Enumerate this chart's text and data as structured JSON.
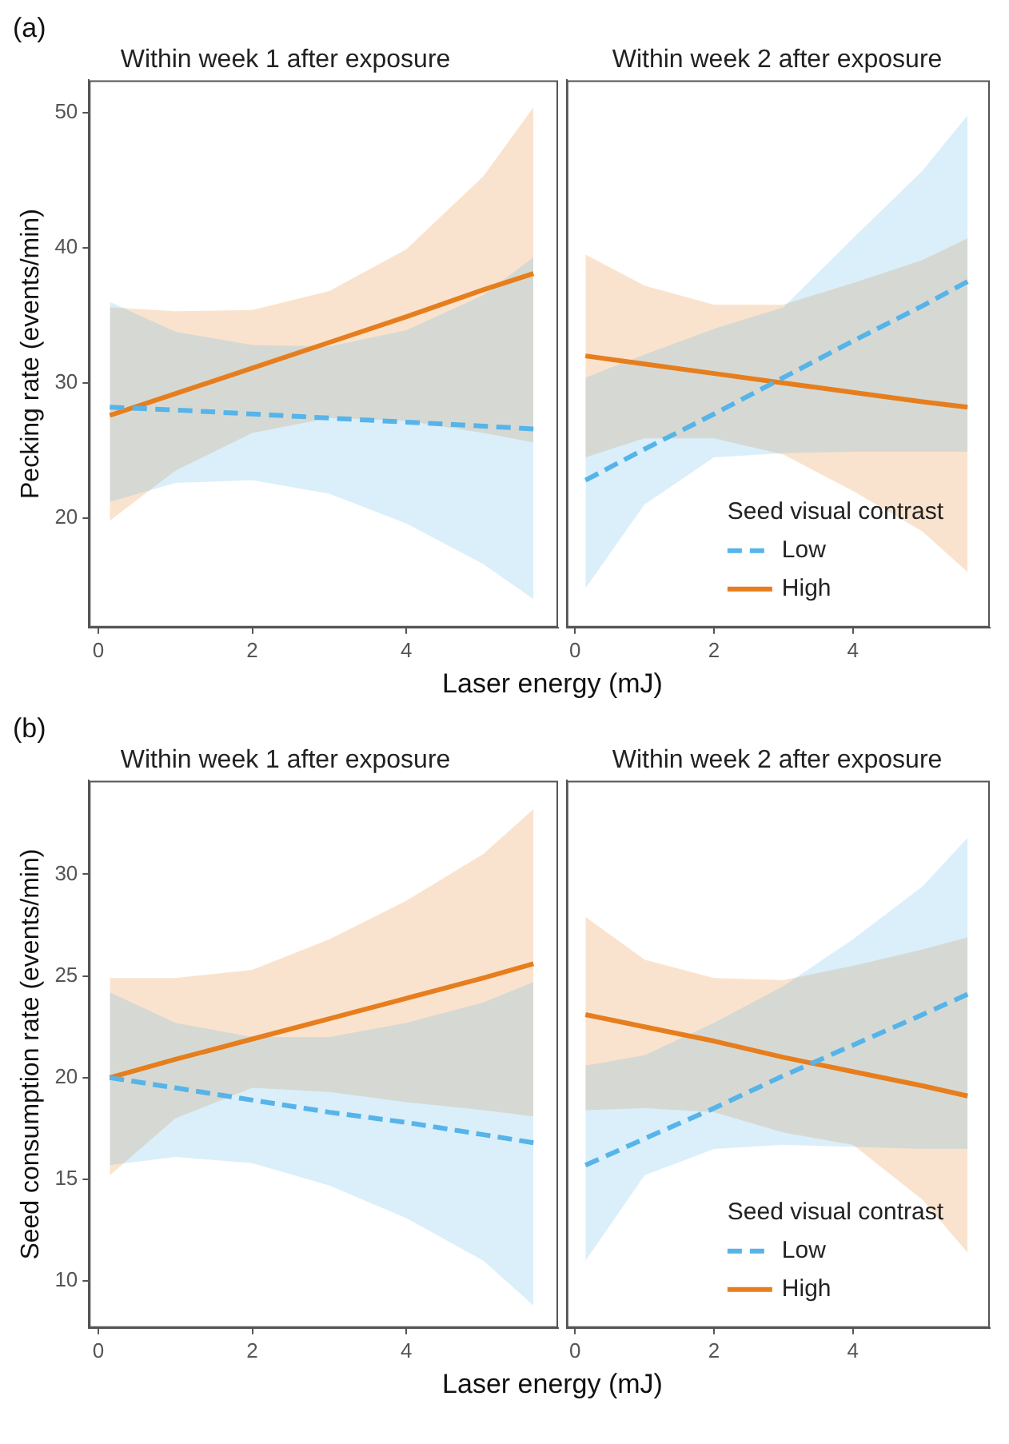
{
  "chart_data": [
    {
      "type": "line",
      "title": "Within week 1 after exposure",
      "ylabel": "Pecking rate (events/min)",
      "xlabel": "Laser energy (mJ)",
      "annotations": [
        "(a)"
      ],
      "x": [
        0.15,
        1,
        2,
        3,
        4,
        5,
        5.65
      ],
      "xlim": [
        -0.12,
        5.97
      ],
      "xticks": [
        0,
        2,
        4
      ],
      "ylim": [
        11.9,
        52.4
      ],
      "yticks": [
        20,
        30,
        40,
        50
      ],
      "marker": "none",
      "legend": false,
      "series": [
        {
          "color": "#56b4e9",
          "line_style": "dashed",
          "values": [
            28.2,
            28.0,
            27.7,
            27.4,
            27.1,
            26.8,
            26.6
          ],
          "lower": [
            21.2,
            22.6,
            22.8,
            21.8,
            19.6,
            16.6,
            14.0
          ],
          "upper": [
            36.0,
            33.8,
            32.8,
            32.7,
            33.9,
            36.5,
            39.3
          ]
        },
        {
          "color": "#e67e1e",
          "line_style": "solid",
          "values": [
            27.6,
            29.2,
            31.1,
            33.0,
            34.9,
            36.9,
            38.1
          ],
          "lower": [
            19.8,
            23.5,
            26.3,
            27.4,
            27.2,
            26.3,
            25.6
          ],
          "upper": [
            35.6,
            35.3,
            35.4,
            36.8,
            39.9,
            45.3,
            50.4
          ]
        }
      ]
    },
    {
      "type": "line",
      "title": "Within week 2 after exposure",
      "x": [
        0.15,
        1,
        2,
        3,
        4,
        5,
        5.65
      ],
      "xlim": [
        -0.12,
        5.97
      ],
      "xticks": [
        0,
        2,
        4
      ],
      "ylim": [
        11.9,
        52.4
      ],
      "yticks": [
        20,
        30,
        40,
        50
      ],
      "tick_labels": "x",
      "marker": "none",
      "legend": "bottom right",
      "legend_title": "Seed visual contrast",
      "series": [
        {
          "name": "Low",
          "color": "#56b4e9",
          "line_style": "dashed",
          "values": [
            22.8,
            25.1,
            27.7,
            30.4,
            33.1,
            35.7,
            37.5
          ],
          "lower": [
            14.8,
            21.0,
            24.5,
            24.8,
            24.9,
            24.9,
            24.9
          ],
          "upper": [
            30.4,
            32.1,
            34.0,
            35.6,
            40.7,
            45.7,
            49.8
          ]
        },
        {
          "name": "High",
          "color": "#e67e1e",
          "line_style": "solid",
          "values": [
            32.0,
            31.4,
            30.7,
            30.0,
            29.3,
            28.6,
            28.2
          ],
          "lower": [
            24.5,
            25.9,
            25.9,
            24.7,
            22.0,
            19.0,
            16.0
          ],
          "upper": [
            39.5,
            37.2,
            35.8,
            35.8,
            37.4,
            39.1,
            40.7
          ]
        }
      ]
    },
    {
      "type": "line",
      "title": "Within week 1 after exposure",
      "ylabel": "Seed consumption rate (events/min)",
      "xlabel": "Laser energy (mJ)",
      "annotations": [
        "(b)"
      ],
      "x": [
        0.15,
        1,
        2,
        3,
        4,
        5,
        5.65
      ],
      "xlim": [
        -0.12,
        5.97
      ],
      "xticks": [
        0,
        2,
        4
      ],
      "ylim": [
        7.7,
        34.6
      ],
      "yticks": [
        10,
        15,
        20,
        25,
        30
      ],
      "marker": "none",
      "legend": false,
      "series": [
        {
          "color": "#56b4e9",
          "line_style": "dashed",
          "values": [
            20.0,
            19.5,
            18.9,
            18.3,
            17.8,
            17.2,
            16.8
          ],
          "lower": [
            15.7,
            16.1,
            15.8,
            14.7,
            13.1,
            11.0,
            8.8
          ],
          "upper": [
            24.2,
            22.7,
            22.0,
            22.0,
            22.7,
            23.7,
            24.7
          ]
        },
        {
          "color": "#e67e1e",
          "line_style": "solid",
          "values": [
            20.0,
            20.9,
            21.9,
            22.9,
            23.9,
            24.9,
            25.6
          ],
          "lower": [
            15.2,
            18.0,
            19.5,
            19.3,
            18.8,
            18.4,
            18.1
          ],
          "upper": [
            24.9,
            24.9,
            25.3,
            26.8,
            28.7,
            31.0,
            33.2
          ]
        }
      ]
    },
    {
      "type": "line",
      "title": "Within week 2 after exposure",
      "x": [
        0.15,
        1,
        2,
        3,
        4,
        5,
        5.65
      ],
      "xlim": [
        -0.12,
        5.97
      ],
      "xticks": [
        0,
        2,
        4
      ],
      "ylim": [
        7.7,
        34.6
      ],
      "yticks": [
        10,
        15,
        20,
        25,
        30
      ],
      "tick_labels": "x",
      "marker": "none",
      "legend": "bottom right",
      "legend_title": "Seed visual contrast",
      "series": [
        {
          "name": "Low",
          "color": "#56b4e9",
          "line_style": "dashed",
          "values": [
            15.7,
            17.0,
            18.5,
            20.1,
            21.6,
            23.1,
            24.1
          ],
          "lower": [
            11.0,
            15.2,
            16.5,
            16.7,
            16.6,
            16.5,
            16.5
          ],
          "upper": [
            20.6,
            21.1,
            22.7,
            24.5,
            26.8,
            29.4,
            31.8
          ]
        },
        {
          "name": "High",
          "color": "#e67e1e",
          "line_style": "solid",
          "values": [
            23.1,
            22.5,
            21.8,
            21.0,
            20.3,
            19.6,
            19.1
          ],
          "lower": [
            18.4,
            18.5,
            18.3,
            17.3,
            16.7,
            14.0,
            11.4
          ],
          "upper": [
            27.9,
            25.8,
            24.9,
            24.8,
            25.5,
            26.3,
            26.9
          ]
        }
      ]
    }
  ]
}
